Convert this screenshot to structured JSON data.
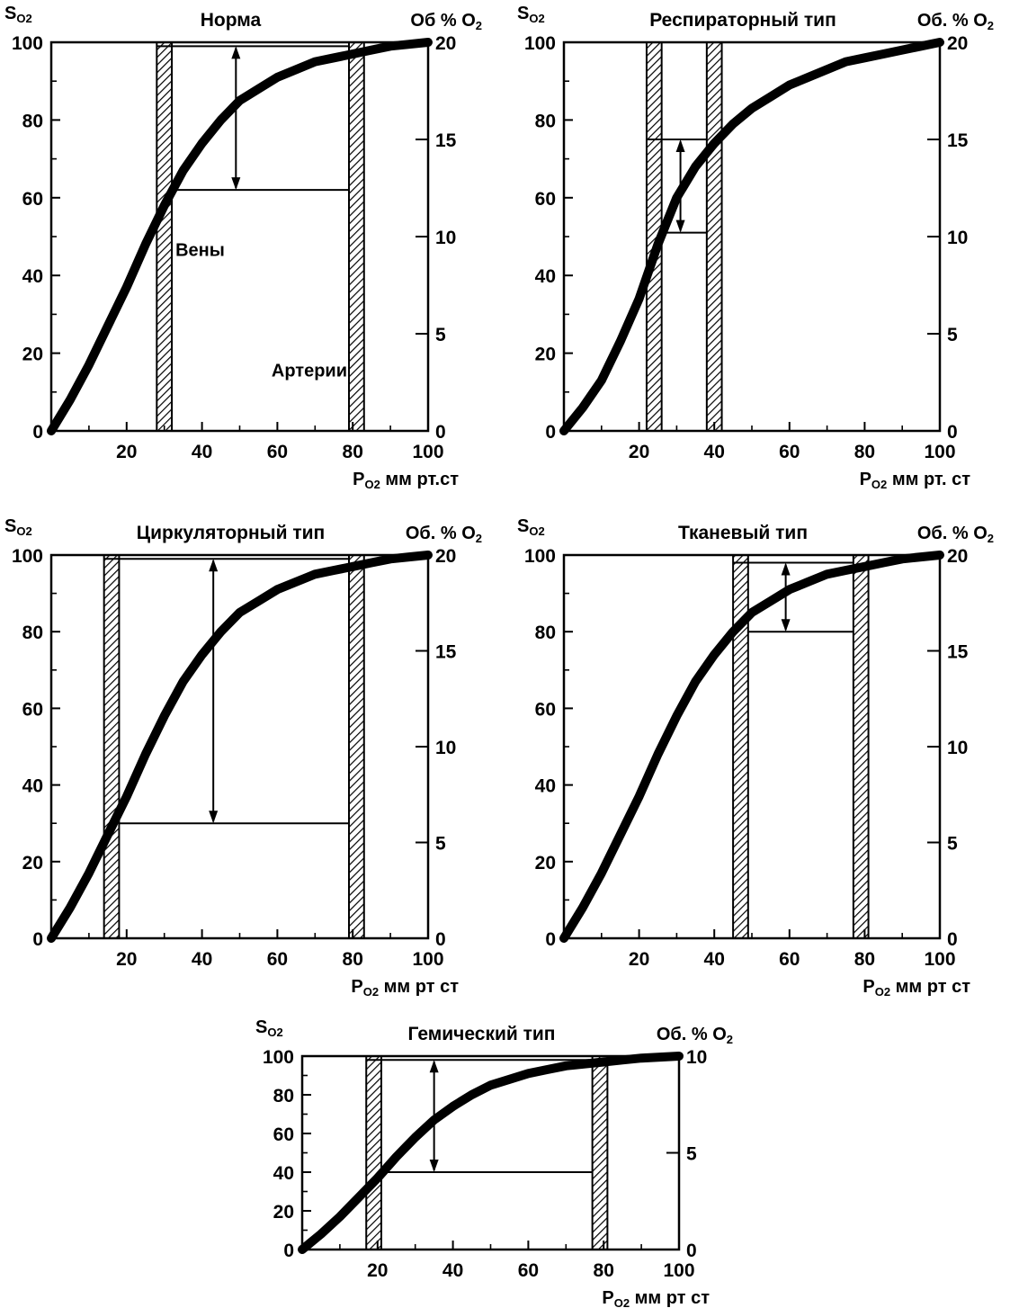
{
  "chart_data": [
    {
      "type": "line",
      "title": "Норма",
      "ylabel_left": "SO2",
      "ylabel_right": "Об  % O2",
      "xlabel": "PO2 мм рт.ст",
      "xlim": [
        0,
        100
      ],
      "ylim": [
        0,
        100
      ],
      "y2lim": [
        0,
        20
      ],
      "x_ticks": [
        "20",
        "40",
        "60",
        "80",
        "100"
      ],
      "y_ticks": [
        "0",
        "20",
        "40",
        "60",
        "80",
        "100"
      ],
      "y2_ticks": [
        "0",
        "5",
        "10",
        "15",
        "20"
      ],
      "curve": {
        "x": [
          0,
          5,
          10,
          15,
          20,
          25,
          30,
          35,
          40,
          45,
          50,
          55,
          60,
          65,
          70,
          75,
          80,
          85,
          90,
          95,
          100
        ],
        "y": [
          0,
          8,
          17,
          27,
          37,
          48,
          58,
          67,
          74,
          80,
          85,
          88,
          91,
          93,
          95,
          96,
          97,
          98,
          99,
          99.5,
          100
        ]
      },
      "bands": [
        {
          "name": "vein",
          "label": "Вены",
          "x_from": 28,
          "x_to": 32
        },
        {
          "name": "artery",
          "label": "Артерии",
          "x_from": 79,
          "x_to": 83
        }
      ],
      "difference": {
        "upper": 99,
        "lower": 62,
        "x": 49
      }
    },
    {
      "type": "line",
      "title": "Респираторный тип",
      "ylabel_left": "SO2",
      "ylabel_right": "Об. % O2",
      "xlabel": "PO2 мм рт. ст",
      "xlim": [
        0,
        100
      ],
      "ylim": [
        0,
        100
      ],
      "y2lim": [
        0,
        20
      ],
      "x_ticks": [
        "20",
        "40",
        "60",
        "80",
        "100"
      ],
      "y_ticks": [
        "0",
        "20",
        "40",
        "60",
        "80",
        "100"
      ],
      "y2_ticks": [
        "0",
        "5",
        "10",
        "15",
        "20"
      ],
      "curve": {
        "x": [
          0,
          5,
          10,
          15,
          20,
          25,
          30,
          35,
          40,
          45,
          50,
          55,
          60,
          65,
          70,
          75,
          80,
          85,
          90,
          95,
          100
        ],
        "y": [
          0,
          6,
          13,
          23,
          34,
          48,
          60,
          68,
          74,
          79,
          83,
          86,
          89,
          91,
          93,
          95,
          96,
          97,
          98,
          99,
          100
        ]
      },
      "bands": [
        {
          "name": "vein",
          "label": "",
          "x_from": 22,
          "x_to": 26
        },
        {
          "name": "artery",
          "label": "",
          "x_from": 38,
          "x_to": 42
        }
      ],
      "difference": {
        "upper": 75,
        "lower": 51,
        "x": 31
      }
    },
    {
      "type": "line",
      "title": "Циркуляторный тип",
      "ylabel_left": "SO2",
      "ylabel_right": "Об. % O2",
      "xlabel": "PO2 мм рт  ст",
      "xlim": [
        0,
        100
      ],
      "ylim": [
        0,
        100
      ],
      "y2lim": [
        0,
        20
      ],
      "x_ticks": [
        "20",
        "40",
        "60",
        "80",
        "100"
      ],
      "y_ticks": [
        "0",
        "20",
        "40",
        "60",
        "80",
        "100"
      ],
      "y2_ticks": [
        "0",
        "5",
        "10",
        "15",
        "20"
      ],
      "curve": {
        "x": [
          0,
          5,
          10,
          15,
          20,
          25,
          30,
          35,
          40,
          45,
          50,
          55,
          60,
          65,
          70,
          75,
          80,
          85,
          90,
          95,
          100
        ],
        "y": [
          0,
          8,
          17,
          27,
          37,
          48,
          58,
          67,
          74,
          80,
          85,
          88,
          91,
          93,
          95,
          96,
          97,
          98,
          99,
          99.5,
          100
        ]
      },
      "bands": [
        {
          "name": "vein",
          "label": "",
          "x_from": 14,
          "x_to": 18
        },
        {
          "name": "artery",
          "label": "",
          "x_from": 79,
          "x_to": 83
        }
      ],
      "difference": {
        "upper": 99,
        "lower": 30,
        "x": 43
      }
    },
    {
      "type": "line",
      "title": "Тканевый тип",
      "ylabel_left": "SO2",
      "ylabel_right": "Об. % O2",
      "xlabel": "PO2 мм рт  ст",
      "xlim": [
        0,
        100
      ],
      "ylim": [
        0,
        100
      ],
      "y2lim": [
        0,
        20
      ],
      "x_ticks": [
        "20",
        "40",
        "60",
        "80",
        "100"
      ],
      "y_ticks": [
        "0",
        "20",
        "40",
        "60",
        "80",
        "100"
      ],
      "y2_ticks": [
        "0",
        "5",
        "10",
        "15",
        "20"
      ],
      "curve": {
        "x": [
          0,
          5,
          10,
          15,
          20,
          25,
          30,
          35,
          40,
          45,
          50,
          55,
          60,
          65,
          70,
          75,
          80,
          85,
          90,
          95,
          100
        ],
        "y": [
          0,
          8,
          17,
          27,
          37,
          48,
          58,
          67,
          74,
          80,
          85,
          88,
          91,
          93,
          95,
          96,
          97,
          98,
          99,
          99.5,
          100
        ]
      },
      "bands": [
        {
          "name": "vein",
          "label": "",
          "x_from": 45,
          "x_to": 49
        },
        {
          "name": "artery",
          "label": "",
          "x_from": 77,
          "x_to": 81
        }
      ],
      "difference": {
        "upper": 98,
        "lower": 80,
        "x": 59
      }
    },
    {
      "type": "line",
      "title": "Гемический тип",
      "ylabel_left": "SO2",
      "ylabel_right": "Об. % O2",
      "xlabel": "PO2 мм рт  ст",
      "xlim": [
        0,
        100
      ],
      "ylim": [
        0,
        100
      ],
      "y2lim": [
        0,
        10
      ],
      "x_ticks": [
        "20",
        "40",
        "60",
        "80",
        "100"
      ],
      "y_ticks": [
        "0",
        "20",
        "40",
        "60",
        "80",
        "100"
      ],
      "y2_ticks": [
        "0",
        "5",
        "10"
      ],
      "curve": {
        "x": [
          0,
          5,
          10,
          15,
          20,
          25,
          30,
          35,
          40,
          45,
          50,
          55,
          60,
          65,
          70,
          75,
          80,
          85,
          90,
          95,
          100
        ],
        "y": [
          0,
          8,
          17,
          27,
          37,
          48,
          58,
          67,
          74,
          80,
          85,
          88,
          91,
          93,
          95,
          96,
          97,
          98,
          99,
          99.5,
          100
        ]
      },
      "bands": [
        {
          "name": "vein",
          "label": "",
          "x_from": 17,
          "x_to": 21
        },
        {
          "name": "artery",
          "label": "",
          "x_from": 77,
          "x_to": 81
        }
      ],
      "difference": {
        "upper": 98,
        "lower": 40,
        "x": 35
      }
    }
  ]
}
